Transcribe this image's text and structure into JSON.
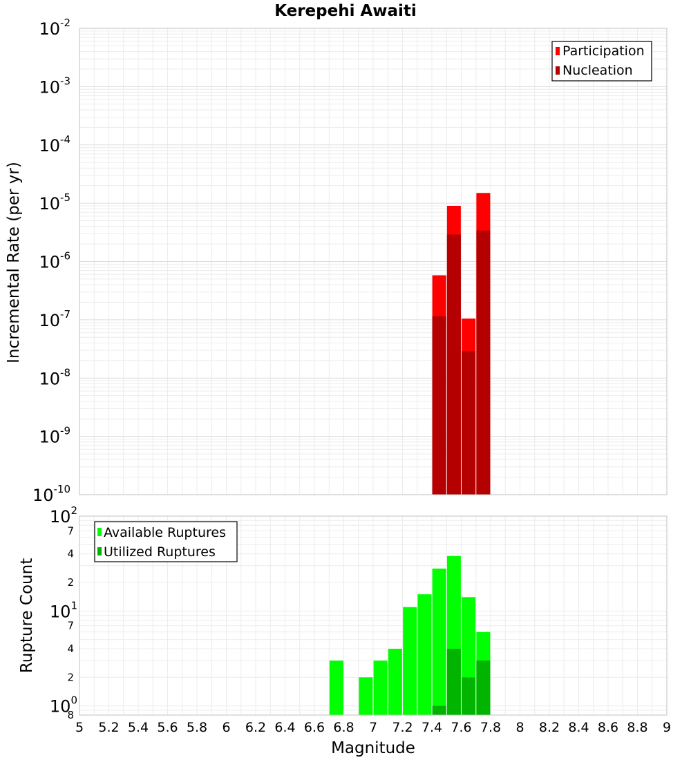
{
  "chart_data": [
    {
      "type": "bar",
      "panel": "top",
      "title": "Kerepehi Awaiti",
      "ylabel": "Incremental Rate (per yr)",
      "yscale": "log",
      "ylim": [
        1e-10,
        0.01
      ],
      "xlim": [
        5,
        9
      ],
      "y_ticks": [
        {
          "base": "10",
          "exp": "-10"
        },
        {
          "base": "10",
          "exp": "-9"
        },
        {
          "base": "10",
          "exp": "-8"
        },
        {
          "base": "10",
          "exp": "-7"
        },
        {
          "base": "10",
          "exp": "-6"
        },
        {
          "base": "10",
          "exp": "-5"
        },
        {
          "base": "10",
          "exp": "-4"
        },
        {
          "base": "10",
          "exp": "-3"
        },
        {
          "base": "10",
          "exp": "-2"
        }
      ],
      "legend": {
        "position": "top-right",
        "entries": [
          "Participation",
          "Nucleation"
        ]
      },
      "colors": {
        "Participation": "#ff0000",
        "Nucleation": "#b40000"
      },
      "x": [
        7.45,
        7.55,
        7.65,
        7.75
      ],
      "series": [
        {
          "name": "Participation",
          "values": [
            5.8e-07,
            9e-06,
            1.05e-07,
            1.5e-05
          ]
        },
        {
          "name": "Nucleation",
          "values": [
            1.15e-07,
            2.9e-06,
            2.9e-08,
            3.4e-06
          ]
        }
      ]
    },
    {
      "type": "bar",
      "panel": "bottom",
      "xlabel": "Magnitude",
      "ylabel": "Rupture Count",
      "yscale": "log",
      "ylim": [
        0.8,
        100
      ],
      "xlim": [
        5,
        9
      ],
      "x_ticks": [
        "5",
        "5.2",
        "5.4",
        "5.6",
        "5.8",
        "6",
        "6.2",
        "6.4",
        "6.6",
        "6.8",
        "7",
        "7.2",
        "7.4",
        "7.6",
        "7.8",
        "8",
        "8.2",
        "8.4",
        "8.6",
        "8.8",
        "9"
      ],
      "y_major_ticks": [
        {
          "value": 1,
          "base": "10",
          "exp": "0"
        },
        {
          "value": 10,
          "base": "10",
          "exp": "1"
        },
        {
          "value": 100,
          "base": "10",
          "exp": "2"
        }
      ],
      "y_minor_ticks": [
        {
          "value": 0.8,
          "label": "8"
        },
        {
          "value": 2,
          "label": "2"
        },
        {
          "value": 4,
          "label": "4"
        },
        {
          "value": 7,
          "label": "7"
        },
        {
          "value": 20,
          "label": "2"
        },
        {
          "value": 40,
          "label": "4"
        },
        {
          "value": 70,
          "label": "7"
        }
      ],
      "legend": {
        "position": "top-left",
        "entries": [
          "Available Ruptures",
          "Utilized Ruptures"
        ]
      },
      "colors": {
        "Available Ruptures": "#00ff00",
        "Utilized Ruptures": "#00b400"
      },
      "x": [
        6.75,
        6.95,
        7.05,
        7.15,
        7.25,
        7.35,
        7.45,
        7.55,
        7.65,
        7.75
      ],
      "series": [
        {
          "name": "Available Ruptures",
          "values": [
            3,
            2,
            3,
            4,
            11,
            15,
            28,
            38,
            14,
            6
          ]
        },
        {
          "name": "Utilized Ruptures",
          "values": [
            0,
            0,
            0,
            0,
            0,
            0,
            1,
            4,
            2,
            3
          ]
        }
      ]
    }
  ]
}
